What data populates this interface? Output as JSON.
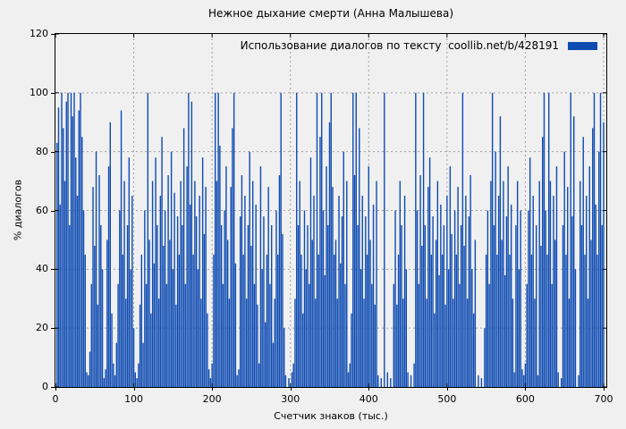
{
  "chart_data": {
    "type": "bar",
    "style": "impulses",
    "title": "Нежное дыхание смерти (Анна Малышева)",
    "legend_label": "Использование диалогов по тексту  coollib.net/b/428191",
    "legend_position": "top-right-inside",
    "xlabel": "Счетчик знаков (тыс.)",
    "ylabel": "% диалогов",
    "xlim": [
      0,
      700
    ],
    "ylim": [
      0,
      120
    ],
    "x_ticks": [
      0,
      100,
      200,
      300,
      400,
      500,
      600,
      700
    ],
    "y_ticks": [
      0,
      20,
      40,
      60,
      80,
      100,
      120
    ],
    "grid": "dashed",
    "grid_color": "#a0a0a0",
    "bar_color": "#0e4bb2",
    "background_color": "#f0f0f0",
    "x_start": 2,
    "x_step": 2,
    "values": [
      83,
      95,
      62,
      100,
      88,
      70,
      97,
      100,
      55,
      100,
      92,
      100,
      78,
      65,
      94,
      100,
      85,
      60,
      45,
      5,
      4,
      12,
      35,
      68,
      48,
      80,
      28,
      72,
      55,
      40,
      3,
      6,
      50,
      75,
      90,
      25,
      8,
      4,
      15,
      35,
      60,
      94,
      45,
      70,
      30,
      55,
      78,
      40,
      65,
      20,
      5,
      3,
      8,
      28,
      45,
      15,
      60,
      35,
      100,
      50,
      25,
      70,
      42,
      78,
      55,
      30,
      65,
      85,
      48,
      60,
      35,
      72,
      50,
      80,
      40,
      66,
      28,
      58,
      45,
      70,
      55,
      88,
      35,
      75,
      100,
      62,
      97,
      45,
      70,
      58,
      40,
      65,
      30,
      78,
      52,
      68,
      25,
      6,
      3,
      8,
      45,
      100,
      70,
      100,
      82,
      55,
      35,
      60,
      75,
      50,
      30,
      68,
      88,
      100,
      42,
      4,
      6,
      58,
      72,
      45,
      65,
      30,
      55,
      80,
      48,
      70,
      35,
      62,
      28,
      8,
      75,
      40,
      58,
      22,
      45,
      68,
      35,
      55,
      15,
      30,
      60,
      45,
      72,
      100,
      52,
      20,
      4,
      0,
      3,
      0,
      5,
      8,
      30,
      100,
      55,
      70,
      45,
      25,
      60,
      40,
      55,
      35,
      78,
      50,
      65,
      30,
      100,
      45,
      85,
      100,
      60,
      38,
      75,
      55,
      90,
      100,
      68,
      45,
      50,
      30,
      65,
      42,
      58,
      80,
      35,
      70,
      5,
      8,
      25,
      100,
      72,
      100,
      55,
      88,
      40,
      65,
      30,
      58,
      45,
      75,
      50,
      35,
      62,
      28,
      70,
      4,
      0,
      3,
      0,
      100,
      0,
      5,
      0,
      3,
      0,
      35,
      60,
      28,
      45,
      70,
      55,
      30,
      65,
      40,
      5,
      0,
      4,
      0,
      8,
      100,
      60,
      35,
      72,
      48,
      100,
      55,
      30,
      68,
      78,
      45,
      58,
      25,
      50,
      70,
      38,
      62,
      45,
      55,
      28,
      65,
      40,
      75,
      52,
      30,
      60,
      45,
      68,
      35,
      55,
      100,
      48,
      65,
      30,
      58,
      72,
      40,
      25,
      50,
      0,
      4,
      0,
      3,
      0,
      20,
      45,
      60,
      35,
      70,
      100,
      55,
      80,
      45,
      65,
      92,
      50,
      70,
      38,
      58,
      75,
      45,
      62,
      30,
      5,
      55,
      70,
      40,
      60,
      6,
      4,
      8,
      35,
      60,
      78,
      45,
      65,
      30,
      55,
      4,
      70,
      48,
      85,
      100,
      60,
      45,
      100,
      70,
      35,
      65,
      50,
      75,
      5,
      0,
      3,
      55,
      80,
      45,
      68,
      30,
      100,
      58,
      92,
      40,
      0,
      4,
      70,
      55,
      85,
      45,
      65,
      30,
      75,
      50,
      88,
      100,
      62,
      45,
      80,
      100,
      55,
      90
    ]
  }
}
